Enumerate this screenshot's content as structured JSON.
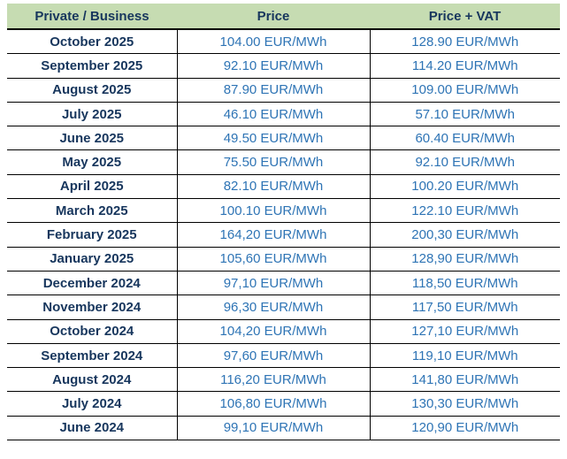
{
  "table": {
    "headers": [
      "Private / Business",
      "Price",
      "Price + VAT"
    ],
    "rows": [
      {
        "month": "October 2025",
        "price": "104.00 EUR/MWh",
        "price_vat": "128.90 EUR/MWh"
      },
      {
        "month": "September 2025",
        "price": "92.10 EUR/MWh",
        "price_vat": "114.20 EUR/MWh"
      },
      {
        "month": "August 2025",
        "price": "87.90 EUR/MWh",
        "price_vat": "109.00 EUR/MWh"
      },
      {
        "month": "July 2025",
        "price": "46.10 EUR/MWh",
        "price_vat": "57.10 EUR/MWh"
      },
      {
        "month": "June 2025",
        "price": "49.50 EUR/MWh",
        "price_vat": "60.40 EUR/MWh"
      },
      {
        "month": "May 2025",
        "price": "75.50 EUR/MWh",
        "price_vat": "92.10 EUR/MWh"
      },
      {
        "month": "April 2025",
        "price": "82.10 EUR/MWh",
        "price_vat": "100.20 EUR/MWh"
      },
      {
        "month": "March 2025",
        "price": "100.10 EUR/MWh",
        "price_vat": "122.10 EUR/MWh"
      },
      {
        "month": "February 2025",
        "price": "164,20 EUR/MWh",
        "price_vat": "200,30 EUR/MWh"
      },
      {
        "month": "January 2025",
        "price": "105,60 EUR/MWh",
        "price_vat": "128,90 EUR/MWh"
      },
      {
        "month": "December 2024",
        "price": "97,10 EUR/MWh",
        "price_vat": "118,50 EUR/MWh"
      },
      {
        "month": "November 2024",
        "price": "96,30 EUR/MWh",
        "price_vat": "117,50 EUR/MWh"
      },
      {
        "month": "October 2024",
        "price": "104,20 EUR/MWh",
        "price_vat": "127,10 EUR/MWh"
      },
      {
        "month": "September 2024",
        "price": "97,60 EUR/MWh",
        "price_vat": "119,10 EUR/MWh"
      },
      {
        "month": "August 2024",
        "price": "116,20 EUR/MWh",
        "price_vat": "141,80 EUR/MWh"
      },
      {
        "month": "July 2024",
        "price": "106,80 EUR/MWh",
        "price_vat": "130,30 EUR/MWh"
      },
      {
        "month": "June 2024",
        "price": "99,10 EUR/MWh",
        "price_vat": "120,90 EUR/MWh"
      }
    ]
  },
  "chart_data": {
    "type": "table",
    "title": "",
    "columns": [
      "Private / Business",
      "Price",
      "Price + VAT"
    ],
    "unit": "EUR/MWh",
    "categories": [
      "October 2025",
      "September 2025",
      "August 2025",
      "July 2025",
      "June 2025",
      "May 2025",
      "April 2025",
      "March 2025",
      "February 2025",
      "January 2025",
      "December 2024",
      "November 2024",
      "October 2024",
      "September 2024",
      "August 2024",
      "July 2024",
      "June 2024"
    ],
    "series": [
      {
        "name": "Price",
        "values": [
          104.0,
          92.1,
          87.9,
          46.1,
          49.5,
          75.5,
          82.1,
          100.1,
          164.2,
          105.6,
          97.1,
          96.3,
          104.2,
          97.6,
          116.2,
          106.8,
          99.1
        ]
      },
      {
        "name": "Price + VAT",
        "values": [
          128.9,
          114.2,
          109.0,
          57.1,
          60.4,
          92.1,
          100.2,
          122.1,
          200.3,
          128.9,
          118.5,
          117.5,
          127.1,
          119.1,
          141.8,
          130.3,
          120.9
        ]
      }
    ]
  },
  "colors": {
    "header_bg": "#c6dcb2",
    "header_text": "#17365d",
    "month_text": "#17365d",
    "value_text": "#2e74b5",
    "border": "#000000"
  }
}
